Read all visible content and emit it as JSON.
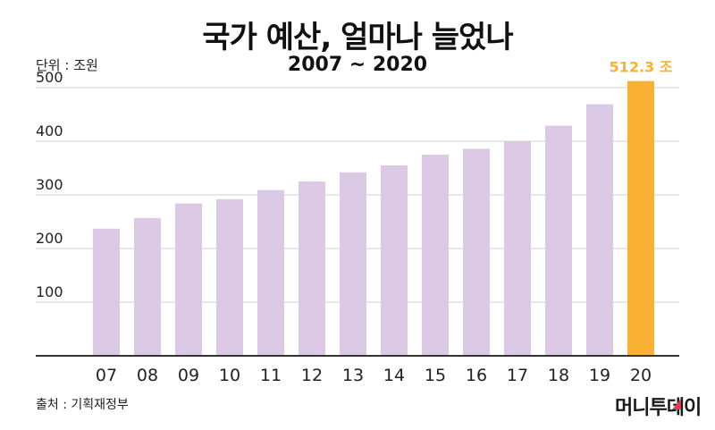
{
  "header": {
    "title": "국가 예산, 얼마나 늘었나",
    "subtitle": "2007 ~ 2020"
  },
  "unit_label": "단위 : 조원",
  "source_label": "출처 : 기획재정부",
  "logo_text": "머니투데이",
  "colors": {
    "bar": "#dcc9e6",
    "highlight": "#f8b133",
    "grid": "#cfcfcf",
    "axis": "#333333",
    "text": "#222222",
    "logo_accent": "#e8374f"
  },
  "chart_data": {
    "type": "bar",
    "categories": [
      "07",
      "08",
      "09",
      "10",
      "11",
      "12",
      "13",
      "14",
      "15",
      "16",
      "17",
      "18",
      "19",
      "20"
    ],
    "values": [
      237,
      257,
      284,
      292,
      309,
      325,
      342,
      355,
      375,
      386,
      400,
      429,
      469,
      512.3
    ],
    "title": "국가 예산, 얼마나 늘었나",
    "subtitle": "2007 ~ 2020",
    "ylabel": "단위 : 조원",
    "ylim": [
      0,
      500
    ],
    "yticks": [
      100,
      200,
      300,
      400,
      500
    ],
    "grid": true,
    "highlight_index": 13,
    "highlight_label": "512.3 조"
  }
}
